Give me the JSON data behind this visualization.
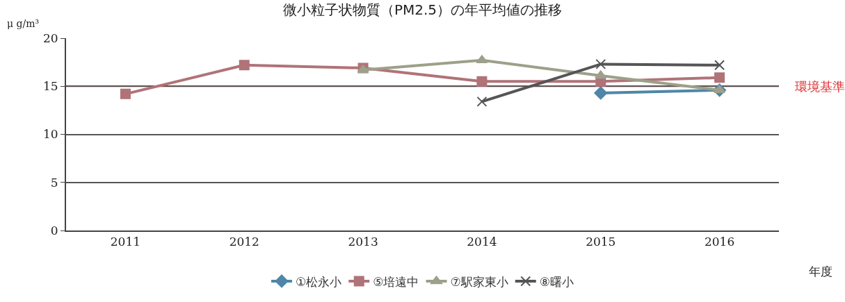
{
  "chart_data": {
    "type": "line",
    "title": "微小粒子状物質（PM2.5）の年平均値の推移",
    "ylabel": "μ g/m³",
    "xlabel": "年度",
    "categories": [
      "2011",
      "2012",
      "2013",
      "2014",
      "2015",
      "2016"
    ],
    "series": [
      {
        "name": "①松永小",
        "color": "#4f86a8",
        "marker": "diamond",
        "values": [
          null,
          null,
          null,
          null,
          14.3,
          14.6
        ]
      },
      {
        "name": "⑤培遠中",
        "color": "#b07378",
        "marker": "square",
        "values": [
          14.2,
          17.2,
          16.9,
          15.5,
          15.5,
          15.9
        ]
      },
      {
        "name": "⑦駅家東小",
        "color": "#9da08a",
        "marker": "triangle",
        "values": [
          null,
          null,
          16.7,
          17.7,
          16.1,
          14.6
        ]
      },
      {
        "name": "⑧曙小",
        "color": "#555555",
        "marker": "cross",
        "values": [
          null,
          null,
          null,
          13.4,
          17.3,
          17.2
        ]
      }
    ],
    "ylim": [
      0,
      20
    ],
    "yticks": [
      0,
      5,
      10,
      15,
      20
    ],
    "grid": "y",
    "legend": "bottom",
    "line_style": "solid",
    "ref_lines": [
      {
        "axis": "y",
        "value": 15,
        "label": "環境基準",
        "color": "#e03030"
      }
    ]
  }
}
